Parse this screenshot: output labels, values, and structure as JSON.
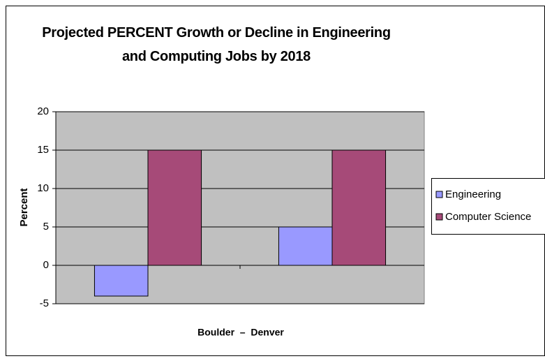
{
  "chart_data": {
    "type": "bar",
    "title": "Projected PERCENT Growth or Decline in Engineering and Computing Jobs by 2018",
    "y_label": "Percent",
    "x_label": "Boulder  –  Denver",
    "categories": [
      null,
      null
    ],
    "series": [
      {
        "name": "Engineering",
        "color": "#9999ff",
        "values": [
          -4,
          5
        ]
      },
      {
        "name": "Computer Science",
        "color": "#a64a78",
        "values": [
          15,
          15
        ]
      }
    ],
    "ylim": [
      -5,
      20
    ],
    "yticks": [
      -5,
      0,
      5,
      10,
      15,
      20
    ],
    "grid": true,
    "legend": "right"
  }
}
